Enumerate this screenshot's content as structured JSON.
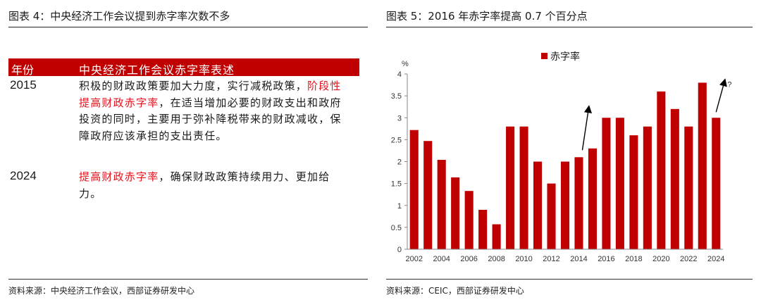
{
  "left": {
    "title": "图表 4：中央经济工作会议提到赤字率次数不多",
    "table": {
      "headers": [
        "年份",
        "中央经济工作会议赤字率表述"
      ],
      "rows": [
        {
          "year": "2015",
          "segments": [
            {
              "text": "积极的财政政策要加大力度，实行减税政策，",
              "highlight": false
            },
            {
              "text": "阶段性提高财政赤字率",
              "highlight": true
            },
            {
              "text": "，在适当增加必要的财政支出和政府投资的同时，主要用于弥补降税带来的财政减收，保障政府应该承担的支出责任。",
              "highlight": false
            }
          ]
        },
        {
          "year": "2024",
          "segments": [
            {
              "text": "提高财政赤字率",
              "highlight": true
            },
            {
              "text": "，确保财政政策持续用力、更加给力。",
              "highlight": false
            }
          ]
        }
      ]
    },
    "source": "资料来源：中央经济工作会议，西部证券研发中心"
  },
  "right": {
    "title": "图表 5：2016 年赤字率提高 0.7 个百分点",
    "source": "资料来源：CEIC，西部证券研发中心"
  },
  "chart_data": {
    "type": "bar",
    "title": "",
    "ylabel": "%",
    "ylim": [
      0,
      4
    ],
    "yticks": [
      0,
      0.5,
      1,
      1.5,
      2,
      2.5,
      3,
      3.5,
      4
    ],
    "grid": false,
    "legend_position": "top-center",
    "x_tick_labels": [
      "2002",
      "2004",
      "2006",
      "2008",
      "2010",
      "2012",
      "2014",
      "2016",
      "2018",
      "2020",
      "2022",
      "2024"
    ],
    "categories": [
      "2002",
      "2003",
      "2004",
      "2005",
      "2006",
      "2007",
      "2008",
      "2009",
      "2010",
      "2011",
      "2012",
      "2013",
      "2014",
      "2015",
      "2016",
      "2017",
      "2018",
      "2019",
      "2020",
      "2021",
      "2022",
      "2023",
      "2024"
    ],
    "series": [
      {
        "name": "赤字率",
        "color": "#c00000",
        "values": [
          2.72,
          2.47,
          2.04,
          1.64,
          1.33,
          0.9,
          0.57,
          2.8,
          2.8,
          2.0,
          1.5,
          2.0,
          2.1,
          2.3,
          3.0,
          3.0,
          2.6,
          2.8,
          3.6,
          3.2,
          2.8,
          3.8,
          3.0
        ]
      }
    ],
    "annotations": [
      {
        "text": "?",
        "category": "2024"
      }
    ]
  }
}
